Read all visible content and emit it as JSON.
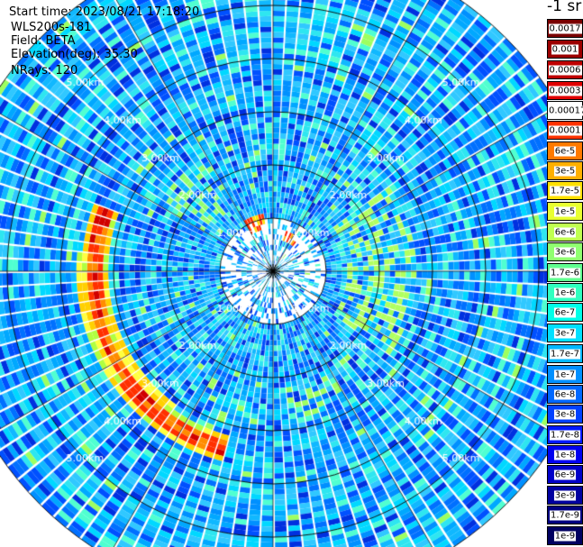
{
  "header": {
    "start_time": "Start time: 2023/08/21 17:18:20",
    "instrument": "WLS200s-181",
    "field": "Field: BETA",
    "elevation": "Elevation(deg): 35.30",
    "nrays": "NRays: 120"
  },
  "colorbar": {
    "unit": "-1 sr",
    "levels": [
      {
        "label": "0.0017",
        "color": "#7a0000"
      },
      {
        "label": "0.001",
        "color": "#9c0000"
      },
      {
        "label": "0.0006",
        "color": "#bf0000"
      },
      {
        "label": "0.0003",
        "color": "#e00000"
      },
      {
        "label": "0.00017",
        "color": "#ffffff"
      },
      {
        "label": "0.0001",
        "color": "#ff3300"
      },
      {
        "label": "6e-5",
        "color": "#ff7a00"
      },
      {
        "label": "3e-5",
        "color": "#ffb000"
      },
      {
        "label": "1.7e-5",
        "color": "#ffe000"
      },
      {
        "label": "1e-5",
        "color": "#e8ff30"
      },
      {
        "label": "6e-6",
        "color": "#c0ff50"
      },
      {
        "label": "3e-6",
        "color": "#90ff70"
      },
      {
        "label": "1.7e-6",
        "color": "#60ff90"
      },
      {
        "label": "1e-6",
        "color": "#30ffc0"
      },
      {
        "label": "6e-7",
        "color": "#00ffe8"
      },
      {
        "label": "3e-7",
        "color": "#00e0ff"
      },
      {
        "label": "1.7e-7",
        "color": "#00b8ff"
      },
      {
        "label": "1e-7",
        "color": "#0090ff"
      },
      {
        "label": "6e-8",
        "color": "#0068ff"
      },
      {
        "label": "3e-8",
        "color": "#0040ff"
      },
      {
        "label": "1.7e-8",
        "color": "#0018ff"
      },
      {
        "label": "1e-8",
        "color": "#0000f0"
      },
      {
        "label": "6e-9",
        "color": "#0000c8"
      },
      {
        "label": "3e-9",
        "color": "#0000a0"
      },
      {
        "label": "1.7e-9",
        "color": "#000080"
      },
      {
        "label": "1e-9",
        "color": "#000060"
      }
    ]
  },
  "chart_data": {
    "type": "heatmap",
    "projection": "polar (PPI scan)",
    "field": "BETA",
    "unit": "-1 sr",
    "elevation_deg": 35.3,
    "nrays": 120,
    "range_rings_km": [
      1,
      2,
      3,
      4,
      5
    ],
    "range_ring_labels": [
      "1.00km",
      "2.00km",
      "3.00km",
      "4.00km",
      "5.00km"
    ],
    "max_range_km": 6.2,
    "background_level": "1e-7 to 3e-7",
    "features": [
      {
        "name": "aerosol/cloud arc west-southwest",
        "range_km": [
          3.2,
          3.8
        ],
        "azimuth_deg": [
          195,
          290
        ],
        "peak_value": "1e-4 to 3e-4"
      },
      {
        "name": "patch north-northeast",
        "range_km": [
          0.6,
          0.8
        ],
        "azimuth_deg": [
          20,
          40
        ],
        "peak_value": "3e-5"
      },
      {
        "name": "patch north-northwest",
        "range_km": [
          0.9,
          1.1
        ],
        "azimuth_deg": [
          330,
          350
        ],
        "peak_value": "3e-5"
      },
      {
        "name": "patches east",
        "range_km": [
          1.5,
          2.6
        ],
        "azimuth_deg": [
          60,
          120
        ],
        "peak_value": "1e-6"
      }
    ]
  }
}
